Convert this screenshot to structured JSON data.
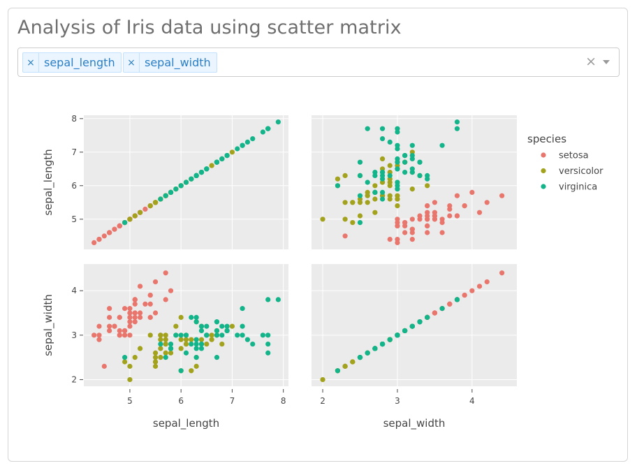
{
  "page": {
    "title": "Analysis of Iris data using scatter matrix"
  },
  "selector": {
    "tags": [
      {
        "label": "sepal_length",
        "remove_icon": "×"
      },
      {
        "label": "sepal_width",
        "remove_icon": "×"
      }
    ],
    "clear_icon": "×",
    "dropdown_icon": "chevron-down-icon"
  },
  "chart_data": {
    "type": "scatter",
    "subtype": "scatter-matrix",
    "dimensions": [
      "sepal_length",
      "sepal_width"
    ],
    "axis_ranges": {
      "sepal_length": [
        4.1,
        8.1
      ],
      "sepal_width": [
        1.85,
        4.6
      ]
    },
    "ticks": {
      "sepal_length": [
        5,
        6,
        7,
        8
      ],
      "sepal_width": [
        2,
        3,
        4
      ]
    },
    "grid": true,
    "legend": {
      "title": "species",
      "placement": "top-right"
    },
    "series": [
      {
        "name": "setosa",
        "color": "#e8766d",
        "sepal_length": [
          5.1,
          4.9,
          4.7,
          4.6,
          5.0,
          5.4,
          4.6,
          5.0,
          4.4,
          4.9,
          5.4,
          4.8,
          4.8,
          4.3,
          5.8,
          5.7,
          5.4,
          5.1,
          5.7,
          5.1,
          5.4,
          5.1,
          4.6,
          5.1,
          4.8,
          5.0,
          5.0,
          5.2,
          5.2,
          4.7,
          4.8,
          5.4,
          5.2,
          5.5,
          4.9,
          5.0,
          5.5,
          4.9,
          4.4,
          5.1,
          5.0,
          4.5,
          4.4,
          5.0,
          5.1,
          4.8,
          5.1,
          4.6,
          5.3,
          5.0
        ],
        "sepal_width": [
          3.5,
          3.0,
          3.2,
          3.1,
          3.6,
          3.9,
          3.4,
          3.4,
          2.9,
          3.1,
          3.7,
          3.4,
          3.0,
          3.0,
          4.0,
          4.4,
          3.9,
          3.5,
          3.8,
          3.8,
          3.4,
          3.7,
          3.6,
          3.3,
          3.4,
          3.0,
          3.4,
          3.5,
          3.4,
          3.2,
          3.1,
          3.4,
          4.1,
          4.2,
          3.1,
          3.2,
          3.5,
          3.6,
          3.0,
          3.4,
          3.5,
          2.3,
          3.2,
          3.5,
          3.8,
          3.0,
          3.8,
          3.2,
          3.7,
          3.3
        ]
      },
      {
        "name": "versicolor",
        "color": "#a3a21d",
        "sepal_length": [
          7.0,
          6.4,
          6.9,
          5.5,
          6.5,
          5.7,
          6.3,
          4.9,
          6.6,
          5.2,
          5.0,
          5.9,
          6.0,
          6.1,
          5.6,
          6.7,
          5.6,
          5.8,
          6.2,
          5.6,
          5.9,
          6.1,
          6.3,
          6.1,
          6.4,
          6.6,
          6.8,
          6.7,
          6.0,
          5.7,
          5.5,
          5.5,
          5.8,
          6.0,
          5.4,
          6.0,
          6.7,
          6.3,
          5.6,
          5.5,
          5.5,
          6.1,
          5.8,
          5.0,
          5.6,
          5.7,
          5.7,
          6.2,
          5.1,
          5.7
        ],
        "sepal_width": [
          3.2,
          3.2,
          3.1,
          2.3,
          2.8,
          2.8,
          3.3,
          2.4,
          2.9,
          2.7,
          2.0,
          3.0,
          2.2,
          2.9,
          2.9,
          3.1,
          3.0,
          2.7,
          2.2,
          2.5,
          3.2,
          2.8,
          2.5,
          2.8,
          2.9,
          3.0,
          2.8,
          3.0,
          2.9,
          2.6,
          2.4,
          2.4,
          2.7,
          2.7,
          3.0,
          3.4,
          3.1,
          2.3,
          3.0,
          2.5,
          2.6,
          3.0,
          2.6,
          2.3,
          2.7,
          3.0,
          2.9,
          2.9,
          2.5,
          2.8
        ]
      },
      {
        "name": "virginica",
        "color": "#13b48a",
        "sepal_length": [
          6.3,
          5.8,
          7.1,
          6.3,
          6.5,
          7.6,
          4.9,
          7.3,
          6.7,
          7.2,
          6.5,
          6.4,
          6.8,
          5.7,
          5.8,
          6.4,
          6.5,
          7.7,
          7.7,
          6.0,
          6.9,
          5.6,
          7.7,
          6.3,
          6.7,
          7.2,
          6.2,
          6.1,
          6.4,
          7.2,
          7.4,
          7.9,
          6.4,
          6.3,
          6.1,
          7.7,
          6.3,
          6.4,
          6.0,
          6.9,
          6.7,
          6.9,
          5.8,
          6.8,
          6.7,
          6.7,
          6.3,
          6.5,
          6.2,
          5.9
        ],
        "sepal_width": [
          3.3,
          2.7,
          3.0,
          2.9,
          3.0,
          3.0,
          2.5,
          2.9,
          2.5,
          3.6,
          3.2,
          2.7,
          3.0,
          2.5,
          2.8,
          3.2,
          3.0,
          3.8,
          2.6,
          2.2,
          3.2,
          2.8,
          2.8,
          2.7,
          3.3,
          3.2,
          2.8,
          3.0,
          2.8,
          3.0,
          2.8,
          3.8,
          2.8,
          2.8,
          2.6,
          3.0,
          3.4,
          3.1,
          3.0,
          3.1,
          3.1,
          3.1,
          2.7,
          3.2,
          3.3,
          3.0,
          2.5,
          3.0,
          3.4,
          3.0
        ]
      }
    ]
  }
}
